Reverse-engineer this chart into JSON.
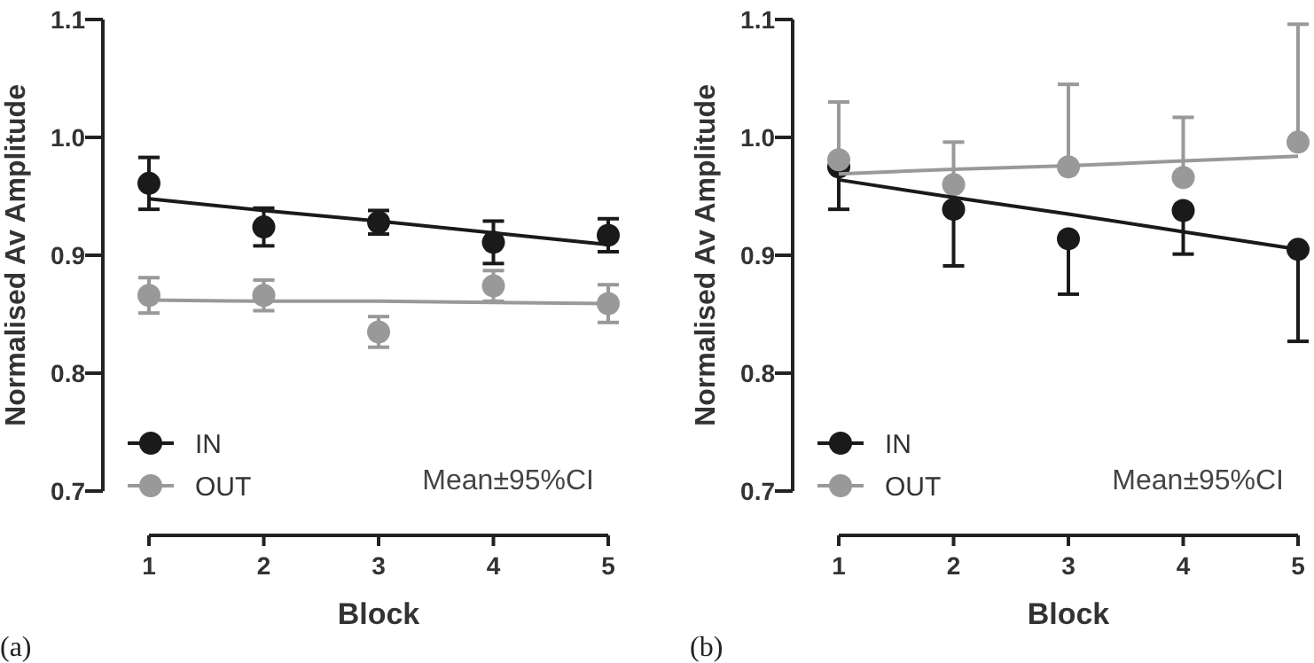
{
  "chart_data": [
    {
      "type": "scatter",
      "xlabel": "Block",
      "ylabel": "Normalised Av Amplitude",
      "x": [
        1,
        2,
        3,
        4,
        5
      ],
      "xlim": [
        1,
        5
      ],
      "xticks": [
        1,
        2,
        3,
        4,
        5
      ],
      "ylim": [
        0.7,
        1.1
      ],
      "yticks": [
        0.7,
        0.8,
        0.9,
        {
          "value": 1,
          "label": "1.0"
        },
        1.1
      ],
      "marker": "circle",
      "legend": "bottom left",
      "grid": false,
      "annotations": [
        "Mean±95%CI",
        "(a)"
      ],
      "series": [
        {
          "name": "IN",
          "color": "#1a1a1a",
          "values": [
            0.961,
            0.924,
            0.928,
            0.911,
            0.917
          ],
          "errors": [
            0.022,
            0.016,
            0.01,
            0.018,
            0.014
          ]
        },
        {
          "name": "OUT",
          "color": "#999999",
          "values": [
            0.866,
            0.866,
            0.835,
            0.874,
            0.859
          ],
          "errors": [
            0.015,
            0.013,
            0.013,
            0.013,
            0.016
          ]
        },
        {
          "type": "line",
          "marker": "none",
          "color": "#1a1a1a",
          "values": [
            0.948,
            0.938,
            0.929,
            0.919,
            0.909
          ]
        },
        {
          "type": "line",
          "marker": "none",
          "color": "#999999",
          "values": [
            0.862,
            0.861,
            0.861,
            0.86,
            0.859
          ]
        }
      ]
    },
    {
      "type": "scatter",
      "xlabel": "Block",
      "ylabel": "Normalised Av Amplitude",
      "x": [
        1,
        2,
        3,
        4,
        5
      ],
      "xlim": [
        1,
        5
      ],
      "xticks": [
        1,
        2,
        3,
        4,
        5
      ],
      "ylim": [
        0.7,
        1.1
      ],
      "yticks": [
        0.7,
        0.8,
        0.9,
        {
          "value": 1,
          "label": "1.0"
        },
        1.1
      ],
      "marker": "circle",
      "legend": "bottom left",
      "grid": false,
      "annotations": [
        "Mean±95%CI",
        "(b)"
      ],
      "series": [
        {
          "name": "IN",
          "color": "#1a1a1a",
          "values": [
            0.975,
            0.939,
            0.914,
            0.938,
            0.905
          ],
          "errors": [
            [
              0.939,
              0.975
            ],
            [
              0.891,
              0.939
            ],
            [
              0.867,
              0.914
            ],
            [
              0.901,
              0.938
            ],
            [
              0.827,
              0.905
            ]
          ]
        },
        {
          "name": "OUT",
          "color": "#999999",
          "values": [
            0.981,
            0.96,
            0.975,
            0.966,
            0.996
          ],
          "errors": [
            [
              0.981,
              1.03
            ],
            [
              0.96,
              0.996
            ],
            [
              0.975,
              1.045
            ],
            [
              0.966,
              1.017
            ],
            [
              0.996,
              1.096
            ]
          ]
        },
        {
          "type": "line",
          "marker": "none",
          "color": "#1a1a1a",
          "values": [
            0.964,
            0.949,
            0.935,
            0.92,
            0.905
          ]
        },
        {
          "type": "line",
          "marker": "none",
          "color": "#999999",
          "values": [
            0.969,
            0.973,
            0.976,
            0.98,
            0.984
          ]
        }
      ]
    }
  ]
}
